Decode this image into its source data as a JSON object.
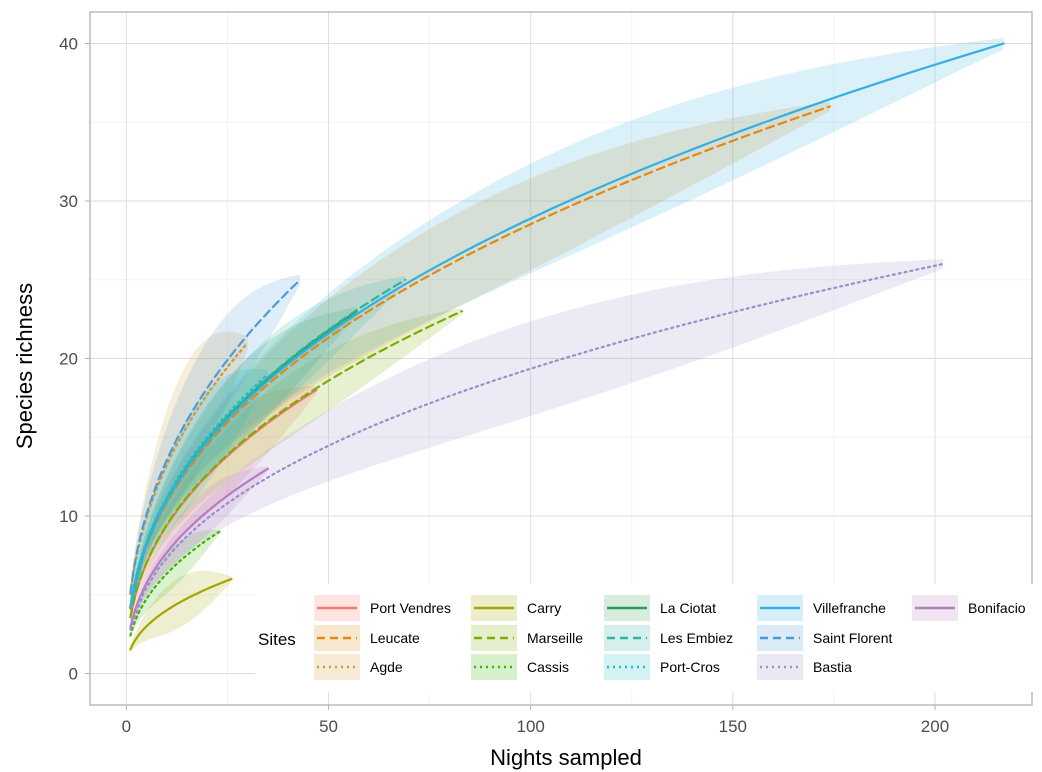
{
  "chart_data": {
    "type": "line",
    "title": "",
    "xlabel": "Nights sampled",
    "ylabel": "Species richness",
    "xlim": [
      -9,
      224
    ],
    "ylim": [
      -2,
      42
    ],
    "x_ticks": [
      0,
      50,
      100,
      150,
      200
    ],
    "y_ticks": [
      0,
      10,
      20,
      30,
      40
    ],
    "grid": true,
    "legend": {
      "title": "Sites",
      "position": "bottom-right"
    },
    "series": [
      {
        "name": "Port Vendres",
        "color": "#F8766D",
        "linestyle": "solid",
        "n_max": 47,
        "s_max": 18,
        "band_width": 2.5
      },
      {
        "name": "Leucate",
        "color": "#E08A14",
        "linestyle": "dashed",
        "n_max": 174,
        "s_max": 36,
        "band_width": 3.0
      },
      {
        "name": "Agde",
        "color": "#CC9A33",
        "linestyle": "dotted",
        "n_max": 30,
        "s_max": 21,
        "band_width": 4.0
      },
      {
        "name": "Carry",
        "color": "#A3A500",
        "linestyle": "solid",
        "n_max": 26,
        "s_max": 6,
        "band_width": 1.6
      },
      {
        "name": "Marseille",
        "color": "#7CAE00",
        "linestyle": "dashed",
        "n_max": 83,
        "s_max": 23,
        "band_width": 2.0
      },
      {
        "name": "Cassis",
        "color": "#39B600",
        "linestyle": "dotted",
        "n_max": 23,
        "s_max": 9,
        "band_width": 1.3
      },
      {
        "name": "La Ciotat",
        "color": "#2CA05A",
        "linestyle": "solid",
        "n_max": 57,
        "s_max": 23,
        "band_width": 2.5
      },
      {
        "name": "Les Embiez",
        "color": "#2BB5A0",
        "linestyle": "dashed",
        "n_max": 69,
        "s_max": 25,
        "band_width": 2.5
      },
      {
        "name": "Port-Cros",
        "color": "#1EC0C9",
        "linestyle": "dotted",
        "n_max": 35,
        "s_max": 19,
        "band_width": 3.0
      },
      {
        "name": "Villefranche",
        "color": "#35B0DE",
        "linestyle": "solid",
        "n_max": 217,
        "s_max": 40,
        "band_width": 3.5
      },
      {
        "name": "Saint Florent",
        "color": "#4C9BD8",
        "linestyle": "dashed",
        "n_max": 43,
        "s_max": 25,
        "band_width": 3.0
      },
      {
        "name": "Bastia",
        "color": "#9B8DCB",
        "linestyle": "dotted",
        "n_max": 202,
        "s_max": 26,
        "band_width": 3.0
      },
      {
        "name": "Bonifacio",
        "color": "#B77CC0",
        "linestyle": "solid",
        "n_max": 35,
        "s_max": 13,
        "band_width": 1.5
      }
    ]
  }
}
